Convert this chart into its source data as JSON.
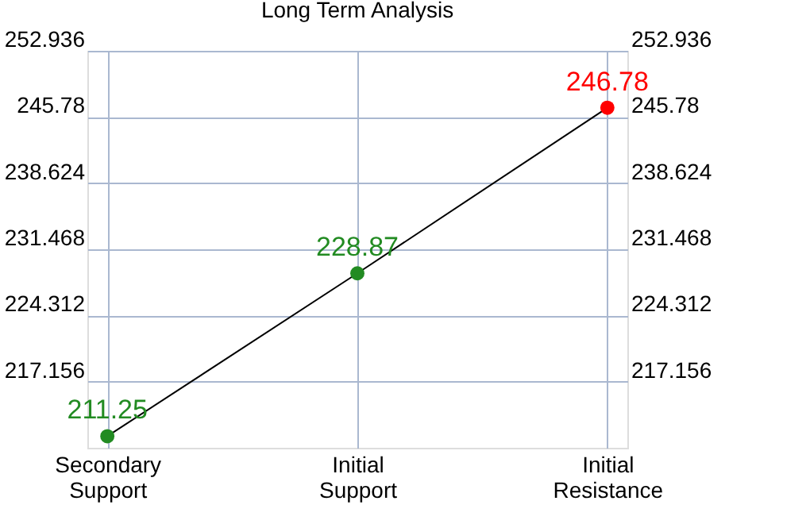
{
  "chart_data": {
    "type": "line",
    "title": "Long Term Analysis",
    "categories": [
      "Secondary Support",
      "Initial Support",
      "Initial Resistance"
    ],
    "series": [
      {
        "color": "#000000",
        "colors": [
          "#228b22",
          "#228b22",
          "#ff0000"
        ],
        "values": [
          211.25,
          228.87,
          246.78
        ]
      }
    ],
    "ylim": [
      210,
      252.936
    ],
    "yticks": [
      217.156,
      224.312,
      231.468,
      238.624,
      245.78,
      252.936
    ],
    "y2lim": [
      210,
      252.936
    ],
    "y2ticks": [
      217.156,
      224.312,
      231.468,
      238.624,
      245.78,
      252.936
    ],
    "data_labels": true,
    "marker": "circle",
    "grid": true
  }
}
